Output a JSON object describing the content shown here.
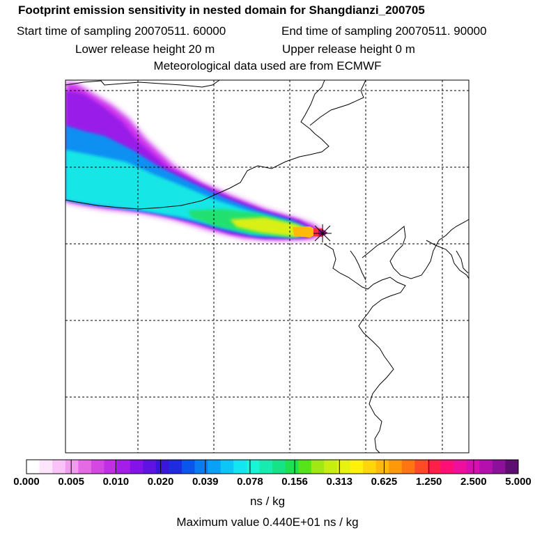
{
  "header": {
    "title": "Footprint emission sensitivity in nested domain for Shangdianzi_200705",
    "start_time": "Start time of sampling 20070511. 60000",
    "end_time": "End time of sampling 20070511. 90000",
    "lower_height": "Lower release height   20 m",
    "upper_height": "Upper release height    0 m",
    "met_data": "Meteorological data used are from ECMWF"
  },
  "colorbar": {
    "ticks": [
      "0.000",
      "0.005",
      "0.010",
      "0.020",
      "0.039",
      "0.078",
      "0.156",
      "0.313",
      "0.625",
      "1.250",
      "2.500",
      "5.000"
    ],
    "colors": [
      "#ffffff",
      "#fde6fb",
      "#f8c3f6",
      "#f29bef",
      "#e56be6",
      "#d447e3",
      "#c22de6",
      "#a51ee8",
      "#8513e8",
      "#5e12e3",
      "#3a16db",
      "#1f2be0",
      "#0a55ea",
      "#0a7cf2",
      "#0aa0f6",
      "#0cc6f8",
      "#12e6f2",
      "#18f4d6",
      "#16ecb0",
      "#14e486",
      "#1ee050",
      "#55e31a",
      "#a1e813",
      "#c8ee10",
      "#e8f20f",
      "#fff20a",
      "#ffd60a",
      "#ffb90a",
      "#ff980a",
      "#ff7413",
      "#ff4a28",
      "#ff1f48",
      "#ff0e78",
      "#f00f9c",
      "#d80fb0",
      "#b410ae",
      "#8c109a",
      "#5e0e70"
    ],
    "units": "ns / kg",
    "max_value": "Maximum value  0.440E+01 ns / kg"
  },
  "map": {
    "receptor": "Shangdianzi",
    "grid": "dashed"
  }
}
